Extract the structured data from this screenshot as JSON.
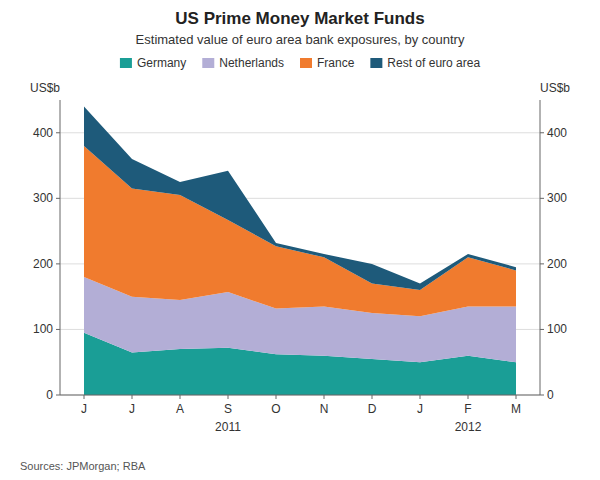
{
  "chart_data": {
    "type": "area",
    "stacked": true,
    "title": "US Prime Money Market Funds",
    "subtitle": "Estimated value of euro area bank exposures, by country",
    "ylabel": "US$b",
    "y2label": "US$b",
    "source": "Sources: JPMorgan; RBA",
    "categories": [
      "J",
      "J",
      "A",
      "S",
      "O",
      "N",
      "D",
      "J",
      "F",
      "M"
    ],
    "annotations": [
      {
        "text": "2011",
        "category": 3
      },
      {
        "text": "2012",
        "category": 8
      }
    ],
    "ylim": [
      0,
      450
    ],
    "yticks": [
      0,
      100,
      200,
      300,
      400
    ],
    "y2lim": [
      0,
      450
    ],
    "y2ticks": [
      0,
      100,
      200,
      300,
      400
    ],
    "grid": true,
    "legend": "top",
    "series": [
      {
        "name": "Germany",
        "color": "#1a9e96",
        "values": [
          95,
          65,
          70,
          72,
          62,
          60,
          55,
          50,
          60,
          50
        ]
      },
      {
        "name": "Netherlands",
        "color": "#b3aed6",
        "values": [
          85,
          85,
          75,
          85,
          70,
          75,
          70,
          70,
          75,
          85
        ]
      },
      {
        "name": "France",
        "color": "#f07b2e",
        "values": [
          200,
          165,
          160,
          110,
          95,
          75,
          45,
          40,
          75,
          55
        ]
      },
      {
        "name": "Rest of euro area",
        "color": "#1e5a7a",
        "values": [
          60,
          45,
          20,
          75,
          5,
          5,
          30,
          10,
          5,
          5
        ]
      }
    ]
  }
}
